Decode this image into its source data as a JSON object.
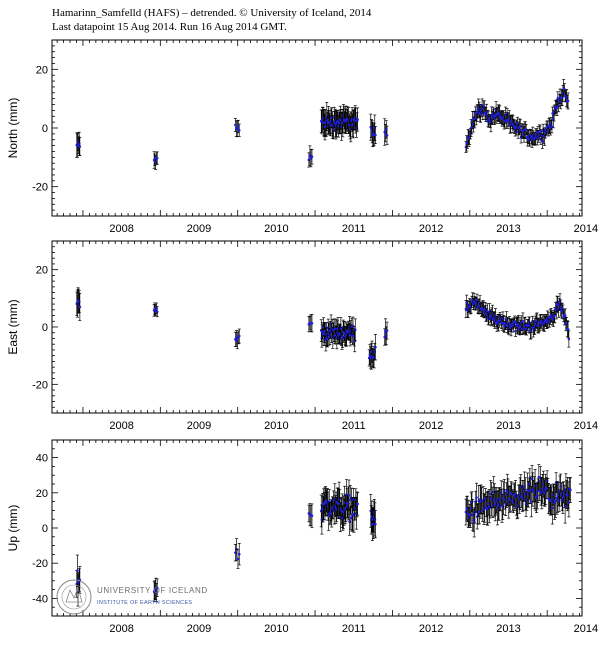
{
  "header": {
    "line1": "Hamarinn_Samfelld (HAFS) – detrended. © University of Iceland, 2014",
    "line2": "Last datapoint 15 Aug 2014. Run 16 Aug 2014 GMT."
  },
  "logo": {
    "line1": "UNIVERSITY OF ICELAND",
    "line2": "INSTITUTE OF EARTH SCIENCES"
  },
  "colors": {
    "marker": "#1f1fe0",
    "errorbar": "#000000",
    "axis": "#000000",
    "logo_blue": "#3a57a8"
  },
  "chart_data": [
    {
      "type": "scatter",
      "ylabel": "North (mm)",
      "ylim": [
        -30,
        30
      ],
      "yticks": [
        -20,
        0,
        20
      ],
      "xlim": [
        2007.6,
        2014.45
      ],
      "xticks": [
        2008,
        2009,
        2010,
        2011,
        2012,
        2013,
        2014
      ],
      "error_bars": true,
      "grid": false,
      "clusters": [
        {
          "t": [
            2007.92,
            2007.96
          ],
          "mean": -6,
          "spread": 1.5,
          "err": 3.5,
          "n": 6
        },
        {
          "t": [
            2008.92,
            2008.96
          ],
          "mean": -11,
          "spread": 1,
          "err": 2.5,
          "n": 5
        },
        {
          "t": [
            2009.97,
            2010.02
          ],
          "mean": 0,
          "spread": 1.5,
          "err": 3,
          "n": 5
        },
        {
          "t": [
            2010.92,
            2010.96
          ],
          "mean": -10,
          "spread": 1.5,
          "err": 3,
          "n": 4
        },
        {
          "t": [
            2011.08,
            2011.55
          ],
          "mean": 2,
          "spread": 2,
          "err": 4,
          "n": 60
        },
        {
          "t": [
            2011.72,
            2011.78
          ],
          "mean": -2,
          "spread": 2,
          "err": 4,
          "n": 8
        },
        {
          "t": [
            2011.9,
            2011.93
          ],
          "mean": -1,
          "spread": 1.5,
          "err": 4,
          "n": 4
        }
      ],
      "curves": [
        {
          "points": [
            [
              2012.95,
              -6
            ],
            [
              2013.05,
              3
            ],
            [
              2013.15,
              7
            ],
            [
              2013.25,
              3
            ],
            [
              2013.35,
              5
            ],
            [
              2013.5,
              2
            ],
            [
              2013.65,
              -1
            ],
            [
              2013.8,
              -3
            ],
            [
              2013.95,
              -2
            ],
            [
              2014.05,
              1
            ],
            [
              2014.15,
              10
            ],
            [
              2014.22,
              12
            ],
            [
              2014.27,
              8
            ]
          ],
          "spread": 1.6,
          "err": 2.5,
          "n": 140
        }
      ]
    },
    {
      "type": "scatter",
      "ylabel": "East (mm)",
      "ylim": [
        -30,
        30
      ],
      "yticks": [
        -20,
        0,
        20
      ],
      "xlim": [
        2007.6,
        2014.45
      ],
      "xticks": [
        2008,
        2009,
        2010,
        2011,
        2012,
        2013,
        2014
      ],
      "error_bars": true,
      "grid": false,
      "clusters": [
        {
          "t": [
            2007.92,
            2007.96
          ],
          "mean": 9,
          "spread": 1.5,
          "err": 4,
          "n": 6
        },
        {
          "t": [
            2008.92,
            2008.96
          ],
          "mean": 6,
          "spread": 1,
          "err": 2,
          "n": 5
        },
        {
          "t": [
            2009.97,
            2010.02
          ],
          "mean": -4,
          "spread": 1.5,
          "err": 2.5,
          "n": 5
        },
        {
          "t": [
            2010.92,
            2010.96
          ],
          "mean": 1,
          "spread": 1.5,
          "err": 3,
          "n": 4
        },
        {
          "t": [
            2011.08,
            2011.52
          ],
          "mean": -2,
          "spread": 2,
          "err": 3.5,
          "n": 60
        },
        {
          "t": [
            2011.7,
            2011.78
          ],
          "mean": -9,
          "spread": 3,
          "err": 4,
          "n": 10
        },
        {
          "t": [
            2011.9,
            2011.93
          ],
          "mean": -3,
          "spread": 1.5,
          "err": 4,
          "n": 4
        }
      ],
      "curves": [
        {
          "points": [
            [
              2012.95,
              6
            ],
            [
              2013.05,
              9
            ],
            [
              2013.15,
              6
            ],
            [
              2013.3,
              3
            ],
            [
              2013.5,
              1
            ],
            [
              2013.7,
              0
            ],
            [
              2013.9,
              1
            ],
            [
              2014.0,
              2
            ],
            [
              2014.1,
              5
            ],
            [
              2014.15,
              8
            ],
            [
              2014.22,
              4
            ],
            [
              2014.28,
              -3
            ]
          ],
          "spread": 1.6,
          "err": 2.5,
          "n": 140
        }
      ]
    },
    {
      "type": "scatter",
      "ylabel": "Up (mm)",
      "ylim": [
        -50,
        50
      ],
      "yticks": [
        -40,
        -20,
        0,
        20,
        40
      ],
      "xlim": [
        2007.6,
        2014.45
      ],
      "xticks": [
        2008,
        2009,
        2010,
        2011,
        2012,
        2013,
        2014
      ],
      "error_bars": true,
      "grid": false,
      "clusters": [
        {
          "t": [
            2007.92,
            2007.96
          ],
          "mean": -30,
          "spread": 5,
          "err": 8,
          "n": 6
        },
        {
          "t": [
            2008.92,
            2008.96
          ],
          "mean": -35,
          "spread": 2,
          "err": 6,
          "n": 5
        },
        {
          "t": [
            2009.97,
            2010.02
          ],
          "mean": -15,
          "spread": 3,
          "err": 6,
          "n": 4
        },
        {
          "t": [
            2010.92,
            2010.96
          ],
          "mean": 8,
          "spread": 3,
          "err": 6,
          "n": 4
        },
        {
          "t": [
            2011.08,
            2011.55
          ],
          "mean": 12,
          "spread": 6,
          "err": 8,
          "n": 60
        },
        {
          "t": [
            2011.72,
            2011.78
          ],
          "mean": 5,
          "spread": 5,
          "err": 8,
          "n": 10
        }
      ],
      "curves": [
        {
          "points": [
            [
              2012.95,
              8
            ],
            [
              2013.1,
              10
            ],
            [
              2013.3,
              15
            ],
            [
              2013.5,
              14
            ],
            [
              2013.7,
              18
            ],
            [
              2013.9,
              22
            ],
            [
              2014.05,
              18
            ],
            [
              2014.2,
              16
            ],
            [
              2014.3,
              18
            ]
          ],
          "spread": 6,
          "err": 8,
          "n": 140
        }
      ]
    }
  ]
}
